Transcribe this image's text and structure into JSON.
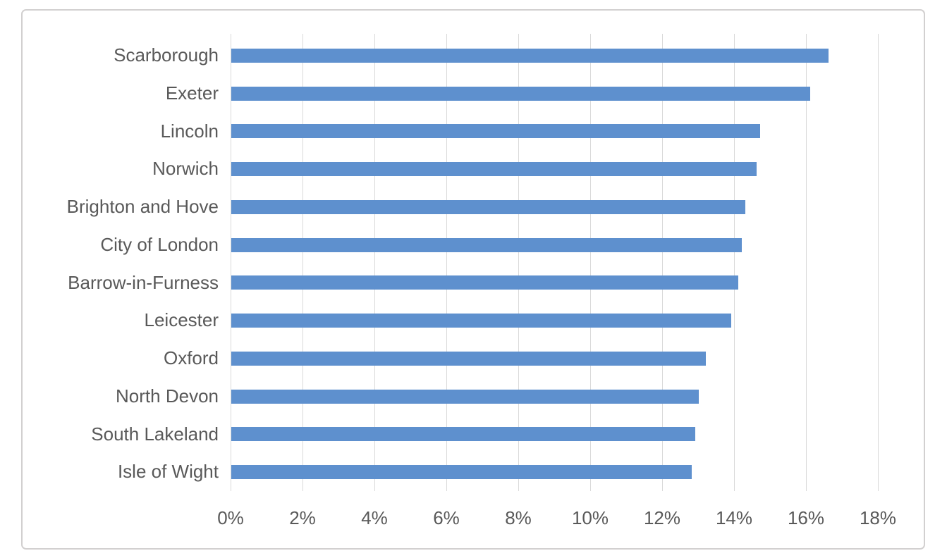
{
  "chart_data": {
    "type": "bar",
    "orientation": "horizontal",
    "title": "",
    "xlabel": "",
    "ylabel": "",
    "categories": [
      "Scarborough",
      "Exeter",
      "Lincoln",
      "Norwich",
      "Brighton and Hove",
      "City of London",
      "Barrow-in-Furness",
      "Leicester",
      "Oxford",
      "North Devon",
      "South Lakeland",
      "Isle of Wight"
    ],
    "values": [
      16.6,
      16.1,
      14.7,
      14.6,
      14.3,
      14.2,
      14.1,
      13.9,
      13.2,
      13.0,
      12.9,
      12.8
    ],
    "value_unit": "%",
    "x_axis": {
      "min": 0,
      "max": 18,
      "step": 2,
      "tick_labels": [
        "0%",
        "2%",
        "4%",
        "6%",
        "8%",
        "10%",
        "12%",
        "14%",
        "16%",
        "18%"
      ]
    },
    "grid": true,
    "legend": false,
    "colors": {
      "bar": "#5e90ce",
      "gridline": "#d9d9d9",
      "text": "#595959",
      "frame_border": "#d2d0d0",
      "background": "#ffffff"
    }
  }
}
